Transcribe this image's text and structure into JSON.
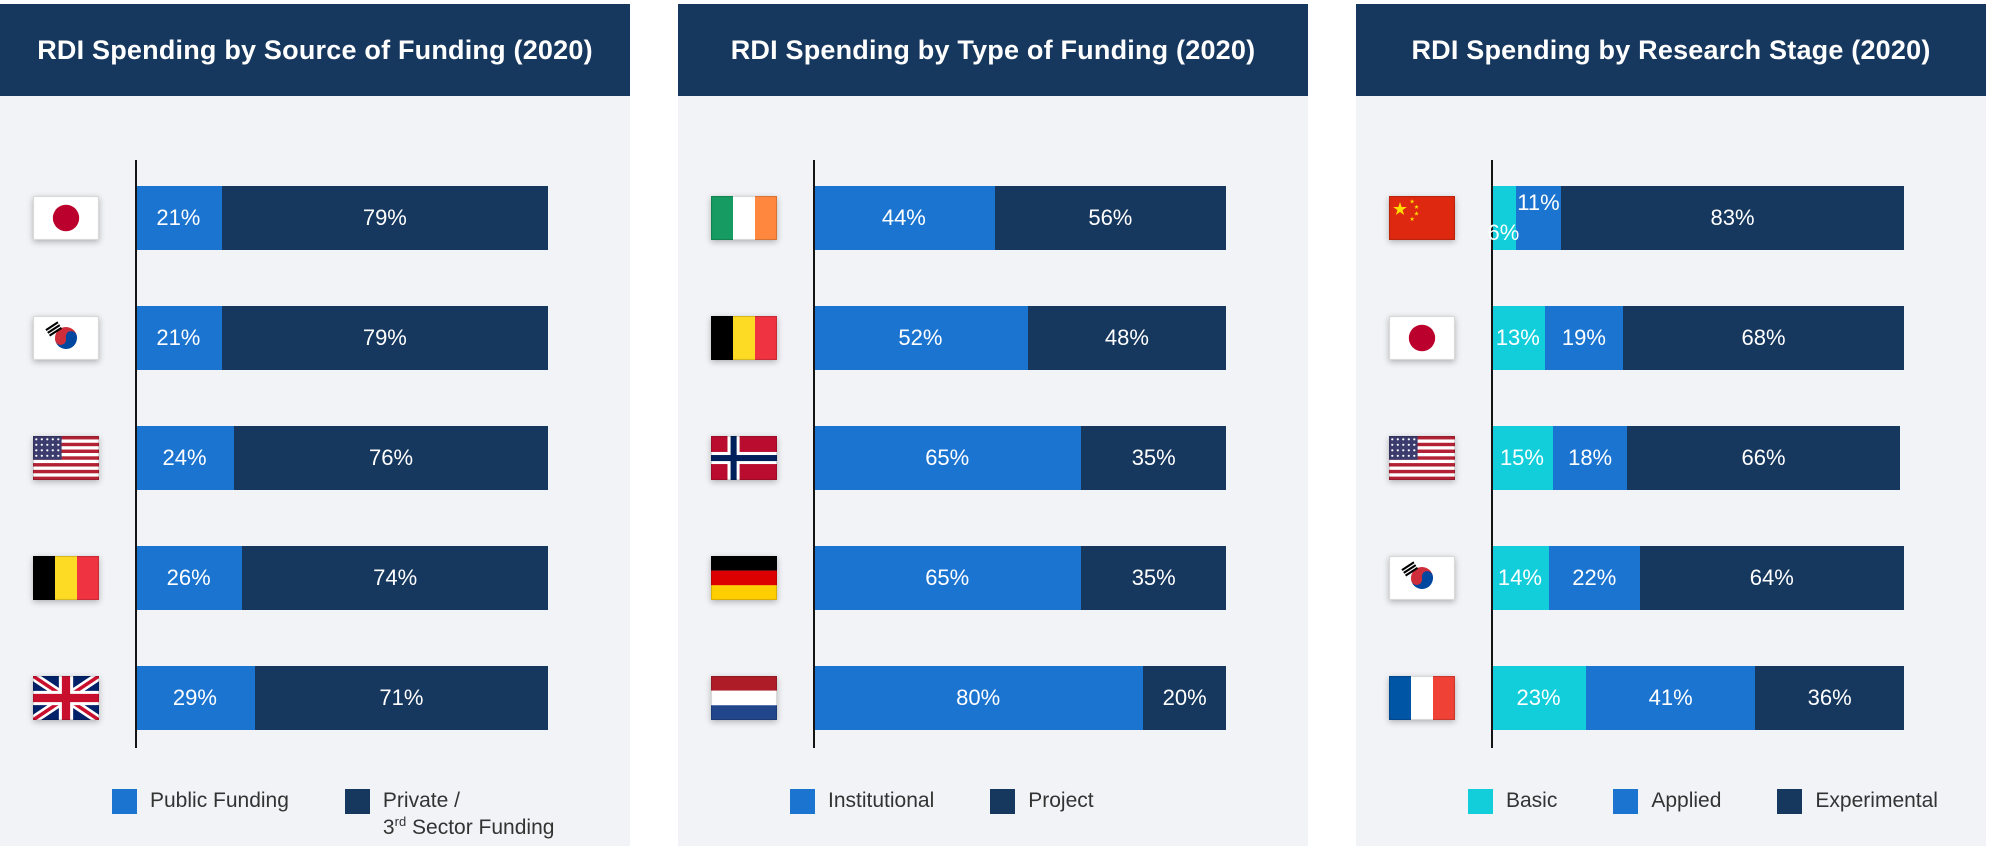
{
  "colors": {
    "header_navy": "#16375E",
    "panel_bg": "#F2F3F6",
    "page_bg": "#FFFFFF",
    "axis": "#141414",
    "bar_blue": "#1B74D0",
    "bar_navy": "#16375E",
    "bar_cyan": "#12CEDB",
    "legend_text": "#333333"
  },
  "chart_data": [
    {
      "type": "bar",
      "orientation": "horizontal",
      "stacked": true,
      "title": "RDI Spending by Source of Funding (2020)",
      "xlim": [
        0,
        100
      ],
      "value_suffix": "%",
      "legend_position": "bottom",
      "grid": false,
      "categories": [
        "Japan",
        "South Korea",
        "United States",
        "Belgium",
        "United Kingdom"
      ],
      "category_flags": [
        "jp",
        "kr",
        "us",
        "be",
        "gb"
      ],
      "series": [
        {
          "name": "Public Funding",
          "color_key": "bar_blue",
          "values": [
            21,
            21,
            24,
            26,
            29
          ]
        },
        {
          "name": "Private /\n3rd Sector Funding",
          "color_key": "bar_navy",
          "values": [
            79,
            79,
            76,
            74,
            71
          ]
        }
      ]
    },
    {
      "type": "bar",
      "orientation": "horizontal",
      "stacked": true,
      "title": "RDI Spending by Type of Funding (2020)",
      "xlim": [
        0,
        100
      ],
      "value_suffix": "%",
      "legend_position": "bottom",
      "grid": false,
      "categories": [
        "Ireland",
        "Belgium",
        "Norway",
        "Germany",
        "Netherlands"
      ],
      "category_flags": [
        "ie",
        "be",
        "no",
        "de",
        "nl"
      ],
      "series": [
        {
          "name": "Institutional",
          "color_key": "bar_blue",
          "values": [
            44,
            52,
            65,
            65,
            80
          ]
        },
        {
          "name": "Project",
          "color_key": "bar_navy",
          "values": [
            56,
            48,
            35,
            35,
            20
          ]
        }
      ]
    },
    {
      "type": "bar",
      "orientation": "horizontal",
      "stacked": true,
      "title": "RDI Spending by Research Stage (2020)",
      "xlim": [
        0,
        100
      ],
      "value_suffix": "%",
      "legend_position": "bottom",
      "grid": false,
      "categories": [
        "China",
        "Japan",
        "United States",
        "South Korea",
        "France"
      ],
      "category_flags": [
        "cn",
        "jp",
        "us",
        "kr",
        "fr"
      ],
      "series": [
        {
          "name": "Basic",
          "color_key": "bar_cyan",
          "values": [
            6,
            13,
            15,
            14,
            23
          ]
        },
        {
          "name": "Applied",
          "color_key": "bar_blue",
          "values": [
            11,
            19,
            18,
            22,
            41
          ]
        },
        {
          "name": "Experimental",
          "color_key": "bar_navy",
          "values": [
            83,
            68,
            66,
            64,
            36
          ]
        }
      ]
    }
  ]
}
